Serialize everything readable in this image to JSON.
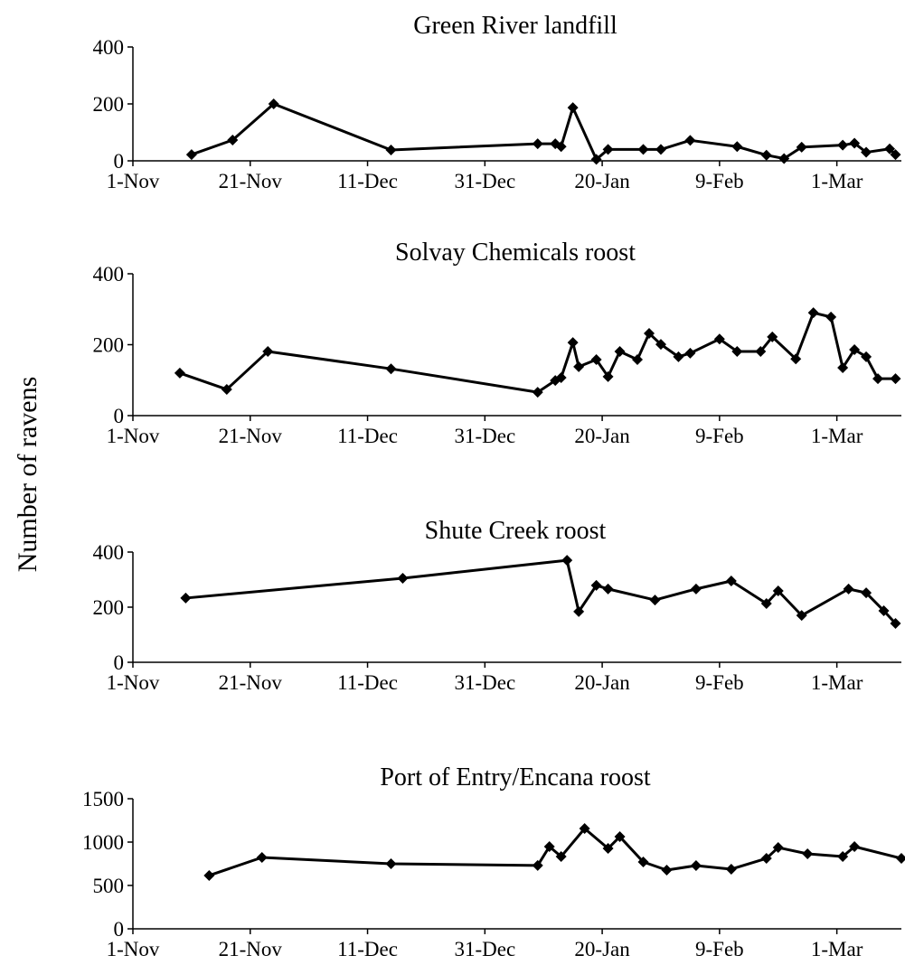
{
  "ylabel": "Number of ravens",
  "chart_data": [
    {
      "type": "line",
      "title": "Green River landfill",
      "color": "#000000",
      "marker": "diamond",
      "x": [
        "11-Nov",
        "18-Nov",
        "25-Nov",
        "15-Dec",
        "9-Jan",
        "12-Jan",
        "13-Jan",
        "15-Jan",
        "19-Jan",
        "21-Jan",
        "27-Jan",
        "30-Jan",
        "4-Feb",
        "12-Feb",
        "17-Feb",
        "20-Feb",
        "23-Feb",
        "2-Mar",
        "4-Mar",
        "6-Mar",
        "10-Mar",
        "11-Mar"
      ],
      "values": [
        22,
        73,
        200,
        38,
        60,
        60,
        50,
        187,
        5,
        40,
        40,
        40,
        72,
        50,
        20,
        8,
        48,
        55,
        62,
        30,
        42,
        22
      ],
      "xlim": [
        "1-Nov",
        "12-Mar"
      ],
      "xticks": [
        "1-Nov",
        "21-Nov",
        "11-Dec",
        "31-Dec",
        "20-Jan",
        "9-Feb",
        "1-Mar"
      ],
      "ylim": [
        0,
        400
      ],
      "yticks": [
        0,
        200,
        400
      ]
    },
    {
      "type": "line",
      "title": "Solvay Chemicals roost",
      "color": "#000000",
      "marker": "diamond",
      "x": [
        "9-Nov",
        "17-Nov",
        "24-Nov",
        "15-Dec",
        "9-Jan",
        "12-Jan",
        "13-Jan",
        "15-Jan",
        "16-Jan",
        "19-Jan",
        "21-Jan",
        "23-Jan",
        "26-Jan",
        "28-Jan",
        "30-Jan",
        "2-Feb",
        "4-Feb",
        "9-Feb",
        "12-Feb",
        "16-Feb",
        "18-Feb",
        "22-Feb",
        "25-Feb",
        "28-Feb",
        "2-Mar",
        "4-Mar",
        "6-Mar",
        "8-Mar",
        "11-Mar"
      ],
      "values": [
        120,
        74,
        181,
        132,
        66,
        99,
        107,
        206,
        138,
        158,
        110,
        181,
        158,
        232,
        201,
        166,
        176,
        216,
        181,
        181,
        222,
        160,
        290,
        278,
        135,
        186,
        166,
        104,
        104
      ],
      "xlim": [
        "1-Nov",
        "12-Mar"
      ],
      "xticks": [
        "1-Nov",
        "21-Nov",
        "11-Dec",
        "31-Dec",
        "20-Jan",
        "9-Feb",
        "1-Mar"
      ],
      "ylim": [
        0,
        400
      ],
      "yticks": [
        0,
        200,
        400
      ]
    },
    {
      "type": "line",
      "title": "Shute Creek roost",
      "color": "#000000",
      "marker": "diamond",
      "x": [
        "10-Nov",
        "17-Dec",
        "14-Jan",
        "16-Jan",
        "19-Jan",
        "21-Jan",
        "29-Jan",
        "5-Feb",
        "11-Feb",
        "17-Feb",
        "19-Feb",
        "23-Feb",
        "3-Mar",
        "6-Mar",
        "9-Mar",
        "11-Mar"
      ],
      "values": [
        233,
        305,
        370,
        184,
        279,
        266,
        226,
        266,
        295,
        213,
        259,
        170,
        266,
        252,
        187,
        141
      ],
      "xlim": [
        "1-Nov",
        "12-Mar"
      ],
      "xticks": [
        "1-Nov",
        "21-Nov",
        "11-Dec",
        "31-Dec",
        "20-Jan",
        "9-Feb",
        "1-Mar"
      ],
      "ylim": [
        0,
        400
      ],
      "yticks": [
        0,
        200,
        400
      ]
    },
    {
      "type": "line",
      "title": "Port of Entry/Encana roost",
      "color": "#000000",
      "marker": "diamond",
      "x": [
        "14-Nov",
        "23-Nov",
        "15-Dec",
        "9-Jan",
        "11-Jan",
        "13-Jan",
        "17-Jan",
        "21-Jan",
        "23-Jan",
        "27-Jan",
        "31-Jan",
        "5-Feb",
        "11-Feb",
        "17-Feb",
        "19-Feb",
        "24-Feb",
        "2-Mar",
        "4-Mar",
        "12-Mar"
      ],
      "values": [
        615,
        823,
        750,
        730,
        948,
        833,
        1156,
        927,
        1062,
        771,
        677,
        729,
        688,
        812,
        937,
        865,
        833,
        948,
        812
      ],
      "xlim": [
        "1-Nov",
        "12-Mar"
      ],
      "xticks": [
        "1-Nov",
        "21-Nov",
        "11-Dec",
        "31-Dec",
        "20-Jan",
        "9-Feb",
        "1-Mar"
      ],
      "ylim": [
        0,
        1500
      ],
      "yticks": [
        0,
        500,
        1000,
        1500
      ]
    }
  ]
}
